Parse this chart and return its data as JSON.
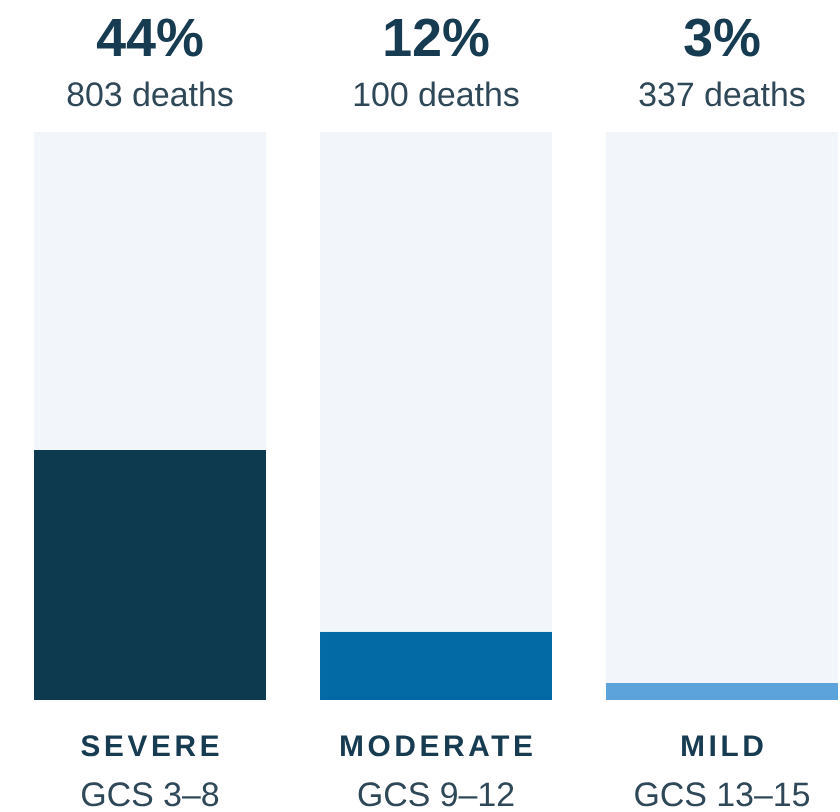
{
  "chart_data": {
    "type": "bar",
    "stacked": true,
    "categories": [
      "SEVERE",
      "MODERATE",
      "MILD"
    ],
    "series": [
      {
        "colors": [
          "#0e3a4f",
          "#046aa6",
          "#5ca3dc"
        ],
        "values": [
          44,
          12,
          3
        ],
        "value_labels": [
          "44%",
          "12%",
          "3%"
        ]
      },
      {
        "color": "#f2f6fa",
        "values": [
          56,
          88,
          97
        ]
      }
    ],
    "ylim": [
      0,
      100
    ],
    "tick_labels": "x",
    "annotations": [
      {
        "text": "803 deaths",
        "x": "SEVERE",
        "y": 100
      },
      {
        "text": "100 deaths",
        "x": "MODERATE",
        "y": 100
      },
      {
        "text": "337 deaths",
        "x": "MILD",
        "y": 100
      },
      "GCS 3–8",
      "GCS 9–12",
      "GCS 13–15"
    ]
  }
}
